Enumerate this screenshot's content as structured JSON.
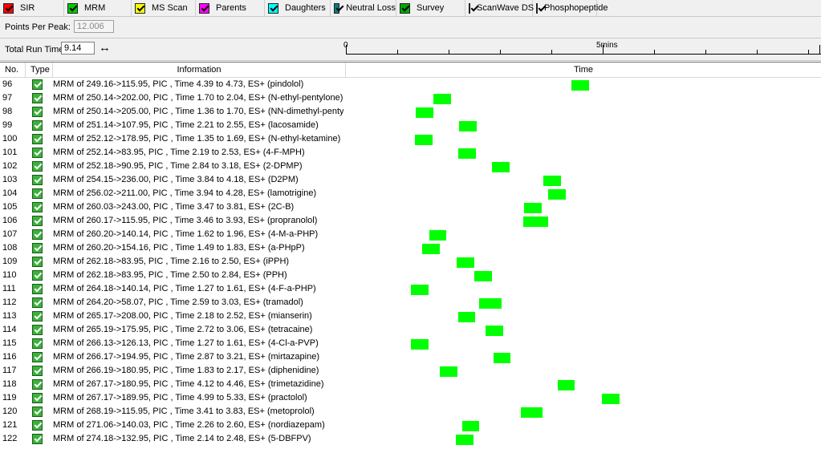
{
  "toolbar": {
    "tabs": [
      {
        "label": "SIR",
        "icon": "sir-icon",
        "color": "#ff0000"
      },
      {
        "label": "MRM",
        "icon": "mrm-icon",
        "color": "#00cc00"
      },
      {
        "label": "MS Scan",
        "icon": "ms-scan-icon",
        "color": "#ffff00"
      },
      {
        "label": "Parents",
        "icon": "parents-icon",
        "color": "#ff00ff"
      },
      {
        "label": "Daughters",
        "icon": "daughters-icon",
        "color": "#00ffff"
      },
      {
        "label": "Neutral Loss",
        "icon": "neutral-loss-icon",
        "color": "#008080"
      },
      {
        "label": "Survey",
        "icon": "survey-icon",
        "color": "#00aa00"
      },
      {
        "label": "ScanWave DS",
        "icon": "scanwave-ds-icon",
        "color": "#0000ff"
      },
      {
        "label": "Phosphopeptide",
        "icon": "phosphopeptide-icon",
        "color": "#800080"
      }
    ]
  },
  "points_per_peak": {
    "label": "Points Per Peak:",
    "value": "12.006"
  },
  "run_time": {
    "label": "Total Run Time:",
    "value": "9.14",
    "axis_start": "0",
    "axis_mid": "5mins",
    "axis_max_minutes": 9.14
  },
  "table": {
    "headers": {
      "no": "No.",
      "type": "Type",
      "info": "Information",
      "time": "Time"
    },
    "rows": [
      {
        "no": "96",
        "info": "MRM of 249.16->115.95, PIC , Time 4.39 to 4.73, ES+ (pindolol)",
        "start": 4.39,
        "end": 4.73
      },
      {
        "no": "97",
        "info": "MRM of 250.14->202.00, PIC , Time 1.70 to 2.04, ES+ (N-ethyl-pentylone)",
        "start": 1.7,
        "end": 2.04
      },
      {
        "no": "98",
        "info": "MRM of 250.14->205.00, PIC , Time 1.36 to 1.70, ES+ (NN-dimethyl-pentylo",
        "start": 1.36,
        "end": 1.7
      },
      {
        "no": "99",
        "info": "MRM of 251.14->107.95, PIC , Time 2.21 to 2.55, ES+ (lacosamide)",
        "start": 2.21,
        "end": 2.55
      },
      {
        "no": "100",
        "info": "MRM of 252.12->178.95, PIC , Time 1.35 to 1.69, ES+ (N-ethyl-ketamine)",
        "start": 1.35,
        "end": 1.69
      },
      {
        "no": "101",
        "info": "MRM of 252.14->83.95, PIC , Time 2.19 to 2.53, ES+ (4-F-MPH)",
        "start": 2.19,
        "end": 2.53
      },
      {
        "no": "102",
        "info": "MRM of 252.18->90.95, PIC , Time 2.84 to 3.18, ES+ (2-DPMP)",
        "start": 2.84,
        "end": 3.18
      },
      {
        "no": "103",
        "info": "MRM of 254.15->236.00, PIC , Time 3.84 to 4.18, ES+ (D2PM)",
        "start": 3.84,
        "end": 4.18
      },
      {
        "no": "104",
        "info": "MRM of 256.02->211.00, PIC , Time 3.94 to 4.28, ES+ (lamotrigine)",
        "start": 3.94,
        "end": 4.28
      },
      {
        "no": "105",
        "info": "MRM of 260.03->243.00, PIC , Time 3.47 to 3.81, ES+ (2C-B)",
        "start": 3.47,
        "end": 3.81
      },
      {
        "no": "106",
        "info": "MRM of 260.17->115.95, PIC , Time 3.46 to 3.93, ES+ (propranolol)",
        "start": 3.46,
        "end": 3.93
      },
      {
        "no": "107",
        "info": "MRM of 260.20->140.14, PIC , Time 1.62 to 1.96, ES+ (4-M-a-PHP)",
        "start": 1.62,
        "end": 1.96
      },
      {
        "no": "108",
        "info": "MRM of 260.20->154.16, PIC , Time 1.49 to 1.83, ES+ (a-PHpP)",
        "start": 1.49,
        "end": 1.83
      },
      {
        "no": "109",
        "info": "MRM of 262.18->83.95, PIC , Time 2.16 to 2.50, ES+ (iPPH)",
        "start": 2.16,
        "end": 2.5
      },
      {
        "no": "110",
        "info": "MRM of 262.18->83.95, PIC , Time 2.50 to 2.84, ES+ (PPH)",
        "start": 2.5,
        "end": 2.84
      },
      {
        "no": "111",
        "info": "MRM of 264.18->140.14, PIC , Time 1.27 to 1.61, ES+ (4-F-a-PHP)",
        "start": 1.27,
        "end": 1.61
      },
      {
        "no": "112",
        "info": "MRM of 264.20->58.07, PIC , Time 2.59 to 3.03, ES+ (tramadol)",
        "start": 2.59,
        "end": 3.03
      },
      {
        "no": "113",
        "info": "MRM of 265.17->208.00, PIC , Time 2.18 to 2.52, ES+ (mianserin)",
        "start": 2.18,
        "end": 2.52
      },
      {
        "no": "114",
        "info": "MRM of 265.19->175.95, PIC , Time 2.72 to 3.06, ES+ (tetracaine)",
        "start": 2.72,
        "end": 3.06
      },
      {
        "no": "115",
        "info": "MRM of 266.13->126.13, PIC , Time 1.27 to 1.61, ES+ (4-Cl-a-PVP)",
        "start": 1.27,
        "end": 1.61
      },
      {
        "no": "116",
        "info": "MRM of 266.17->194.95, PIC , Time 2.87 to 3.21, ES+ (mirtazapine)",
        "start": 2.87,
        "end": 3.21
      },
      {
        "no": "117",
        "info": "MRM of 266.19->180.95, PIC , Time 1.83 to 2.17, ES+ (diphenidine)",
        "start": 1.83,
        "end": 2.17
      },
      {
        "no": "118",
        "info": "MRM of 267.17->180.95, PIC , Time 4.12 to 4.46, ES+ (trimetazidine)",
        "start": 4.12,
        "end": 4.46
      },
      {
        "no": "119",
        "info": "MRM of 267.17->189.95, PIC , Time 4.99 to 5.33, ES+ (practolol)",
        "start": 4.99,
        "end": 5.33
      },
      {
        "no": "120",
        "info": "MRM of 268.19->115.95, PIC , Time 3.41 to 3.83, ES+ (metoprolol)",
        "start": 3.41,
        "end": 3.83
      },
      {
        "no": "121",
        "info": "MRM of 271.06->140.03, PIC , Time 2.26 to 2.60, ES+ (nordiazepam)",
        "start": 2.26,
        "end": 2.6
      },
      {
        "no": "122",
        "info": "MRM of 274.18->132.95, PIC , Time 2.14 to 2.48, ES+ (5-DBFPV)",
        "start": 2.14,
        "end": 2.48
      }
    ]
  },
  "colors": {
    "bar": "#00ff00",
    "row_icon": "#3bb23b"
  }
}
